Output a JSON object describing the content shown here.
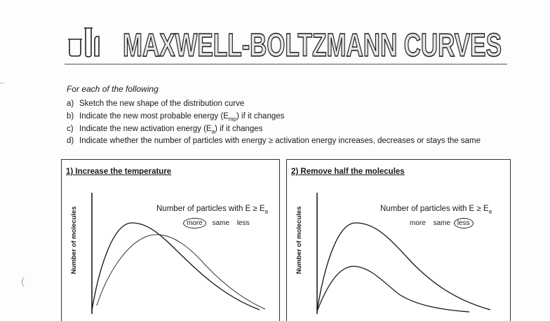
{
  "header": {
    "title": "MAXWELL-BOLTZMANN CURVES",
    "logo_icon": "lab-glassware-icon"
  },
  "intro": "For each of the following",
  "instructions": [
    {
      "letter": "a)",
      "text": "Sketch the new shape of the distribution curve"
    },
    {
      "letter": "b)",
      "text": "Indicate the new most probable energy (E",
      "sub": "mp",
      "tail": ") if it changes"
    },
    {
      "letter": "c)",
      "text": "Indicate the new activation energy (E",
      "sub": "a",
      "tail": ") if it changes"
    },
    {
      "letter": "d)",
      "text": "Indicate whether the number of particles with energy ≥ activation energy increases, decreases or stays the same"
    }
  ],
  "panels": [
    {
      "title": "1)  Increase the temperature",
      "ylabel": "Number of molecules",
      "count_label": "Number of particles with E ≥ E",
      "count_sub": "a",
      "options": [
        "more",
        "same",
        "less"
      ],
      "circled": "more"
    },
    {
      "title": "2)  Remove half the molecules",
      "ylabel": "Number of molecules",
      "count_label": "Number of particles with E ≥ E",
      "count_sub": "a",
      "options": [
        "more",
        "same",
        "less"
      ],
      "circled": "less"
    }
  ],
  "colors": {
    "ink": "#1a1a1a",
    "border": "#333333"
  }
}
